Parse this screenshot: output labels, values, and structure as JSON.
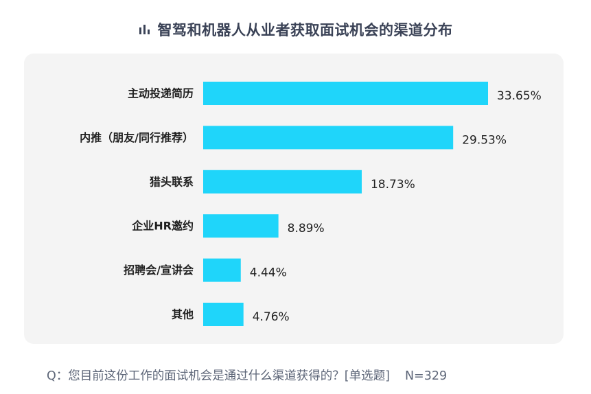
{
  "title": "智驾和机器人从业者获取面试机会的渠道分布",
  "title_icon": "bar-chart-icon",
  "colors": {
    "bar": "#1fd5fa",
    "title": "#3a4256",
    "panel": "#f4f4f4",
    "footnote": "#5d6678"
  },
  "chart_data": {
    "type": "bar",
    "orientation": "horizontal",
    "categories": [
      "主动投递简历",
      "内推（朋友/同行推荐）",
      "猎头联系",
      "企业HR邀约",
      "招聘会/宣讲会",
      "其他"
    ],
    "values": [
      33.65,
      29.53,
      18.73,
      8.89,
      4.44,
      4.76
    ],
    "value_labels": [
      "33.65%",
      "29.53%",
      "18.73%",
      "8.89%",
      "4.44%",
      "4.76%"
    ],
    "unit": "%",
    "xlim": [
      0,
      33.65
    ],
    "grid": false,
    "legend": "none"
  },
  "footnote": {
    "question": "Q：您目前这份工作的面试机会是通过什么渠道获得的？[单选题]",
    "sample": "N=329"
  }
}
